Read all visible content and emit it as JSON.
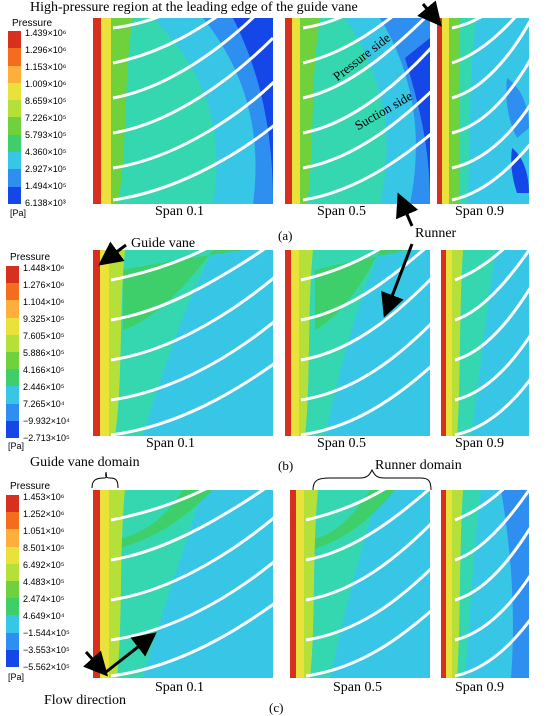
{
  "top_annotation": "High-pressure region at the leading edge of the guide vane",
  "panels": [
    {
      "tag": "(a)",
      "legend": {
        "title": "Pressure",
        "unit": "[Pa]",
        "ticks": [
          "1.439×10⁶",
          "1.296×10⁶",
          "1.153×10⁶",
          "1.009×10⁶",
          "8.659×10⁵",
          "7.226×10⁵",
          "5.793×10⁵",
          "4.360×10⁵",
          "2.927×10⁵",
          "1.494×10⁵",
          "6.138×10³"
        ]
      },
      "spans": [
        "Span 0.1",
        "Span 0.5",
        "Span 0.9"
      ]
    },
    {
      "tag": "(b)",
      "legend": {
        "title": "Pressure",
        "unit": "[Pa]",
        "ticks": [
          "1.448×10⁶",
          "1.276×10⁶",
          "1.104×10⁶",
          "9.325×10⁵",
          "7.605×10⁵",
          "5.886×10⁵",
          "4.166×10⁵",
          "2.446×10⁵",
          "7.265×10⁴",
          "−9.932×10⁴",
          "−2.713×10⁵"
        ]
      },
      "spans": [
        "Span 0.1",
        "Span 0.5",
        "Span 0.9"
      ]
    },
    {
      "tag": "(c)",
      "legend": {
        "title": "Pressure",
        "unit": "[Pa]",
        "ticks": [
          "1.453×10⁶",
          "1.252×10⁶",
          "1.051×10⁶",
          "8.501×10⁵",
          "6.492×10⁵",
          "4.483×10⁵",
          "2.474×10⁵",
          "4.649×10⁴",
          "−1.544×10⁵",
          "−3.553×10⁵",
          "−5.562×10⁵"
        ]
      },
      "spans": [
        "Span 0.1",
        "Span 0.5",
        "Span 0.9"
      ]
    }
  ],
  "annotations": {
    "pressure_side": "Pressure side",
    "suction_side": "Suction side",
    "runner": "Runner",
    "guide_vane": "Guide vane",
    "guide_vane_domain": "Guide vane domain",
    "runner_domain": "Runner domain",
    "flow_direction": "Flow direction"
  },
  "colors": {
    "scale": [
      "#d7301f",
      "#f46d1f",
      "#fdae3b",
      "#e8e23a",
      "#b5e03a",
      "#6fd13c",
      "#3fcf6a",
      "#34d7b0",
      "#38c6e6",
      "#2f8ff0",
      "#1446e8"
    ]
  }
}
